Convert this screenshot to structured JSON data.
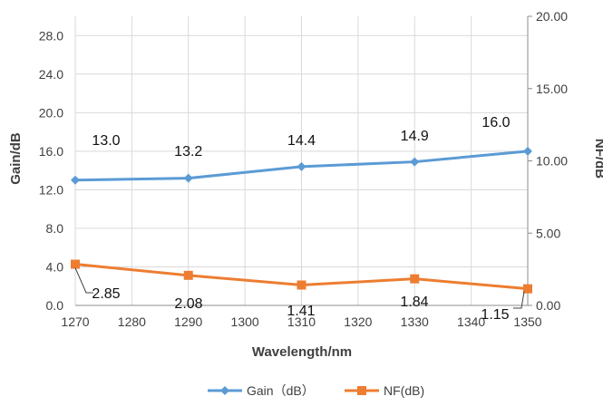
{
  "chart_data": {
    "type": "line",
    "x": [
      1270,
      1290,
      1310,
      1330,
      1350
    ],
    "xlabel": "Wavelength/nm",
    "xlim": [
      1270,
      1350
    ],
    "xticks": [
      "1270",
      "1280",
      "1290",
      "1300",
      "1310",
      "1320",
      "1330",
      "1340",
      "1350"
    ],
    "ylabel": "Gain/dB",
    "ylim": [
      0,
      30
    ],
    "yticks": [
      "0.0",
      "4.0",
      "8.0",
      "12.0",
      "16.0",
      "20.0",
      "24.0",
      "28.0"
    ],
    "y2label": "NF/dB",
    "y2lim": [
      0,
      20
    ],
    "y2ticks": [
      "0.00",
      "5.00",
      "10.00",
      "15.00",
      "20.00"
    ],
    "grid": true,
    "legend_position": "bottom",
    "series": [
      {
        "name": "Gain（dB）",
        "axis": "left",
        "color": "#5b9bd5",
        "marker": "diamond",
        "values": [
          13.0,
          13.2,
          14.4,
          14.9,
          16.0
        ],
        "labels": [
          "13.0",
          "13.2",
          "14.4",
          "14.9",
          "16.0"
        ]
      },
      {
        "name": "NF(dB)",
        "axis": "right",
        "color": "#ed7d31",
        "marker": "square",
        "values": [
          2.85,
          2.08,
          1.41,
          1.84,
          1.15
        ],
        "labels": [
          "2.85",
          "2.08",
          "1.41",
          "1.84",
          "1.15"
        ]
      }
    ]
  }
}
